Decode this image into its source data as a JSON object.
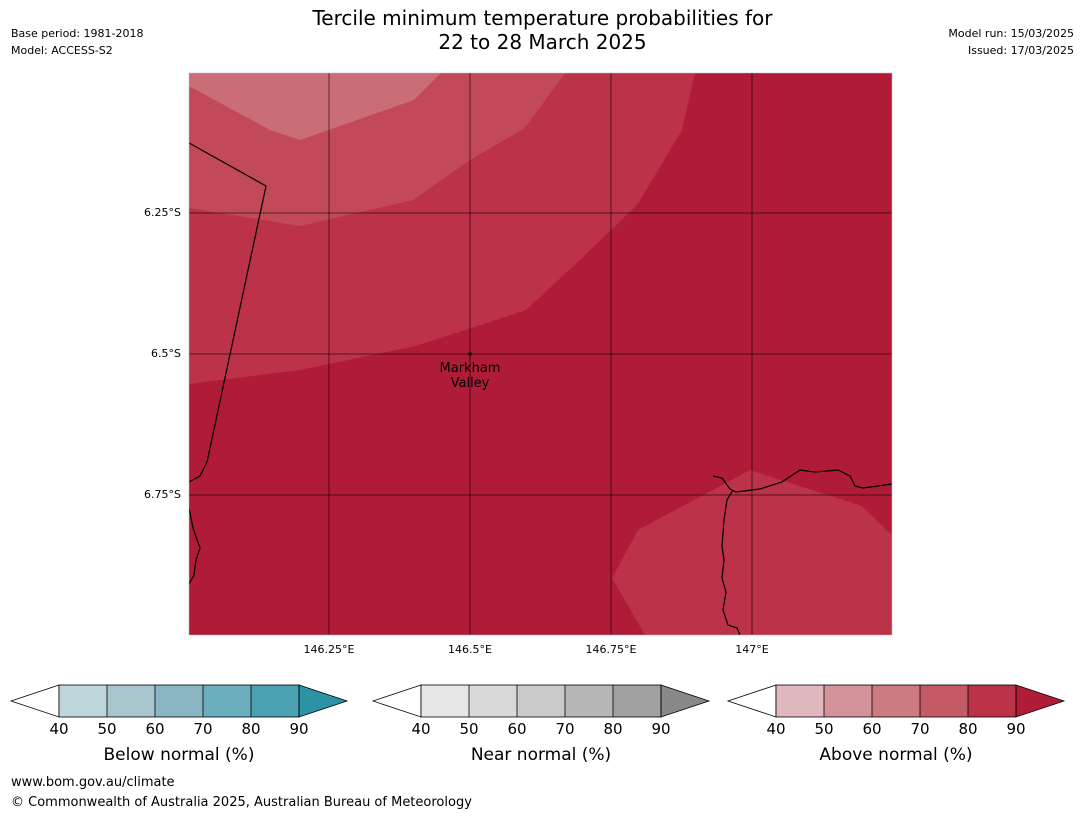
{
  "title_line1": "Tercile minimum temperature probabilities for",
  "title_line2": "22 to 28 March 2025",
  "meta_left": [
    "Base period: 1981-2018",
    "Model: ACCESS-S2"
  ],
  "meta_right": [
    "Model run: 15/03/2025",
    "Issued: 17/03/2025"
  ],
  "map": {
    "lat_labels": [
      "6.25°S",
      "6.5°S",
      "6.75°S"
    ],
    "lon_labels": [
      "146.25°E",
      "146.5°E",
      "146.75°E",
      "147°E"
    ],
    "place": {
      "name_line1": "Markham",
      "name_line2": "Valley"
    },
    "colors": {
      "above_80_90": "#b01c37",
      "above_70_80": "#bb3249",
      "above_60_70": "#c24a58",
      "above_50_60": "#ca6d77"
    }
  },
  "colorbars": [
    {
      "label": "Below normal (%)",
      "ticks": [
        "40",
        "50",
        "60",
        "70",
        "80",
        "90"
      ],
      "colors": [
        "#bfd5dc",
        "#a6c5cc",
        "#89b6c2",
        "#6baebd",
        "#4aa1b1",
        "#2b93a5"
      ]
    },
    {
      "label": "Near normal (%)",
      "ticks": [
        "40",
        "50",
        "60",
        "70",
        "80",
        "90"
      ],
      "colors": [
        "#e6e6e6",
        "#d9d9d9",
        "#cacaca",
        "#b6b6b6",
        "#a1a1a1",
        "#888888"
      ]
    },
    {
      "label": "Above normal (%)",
      "ticks": [
        "40",
        "50",
        "60",
        "70",
        "80",
        "90"
      ],
      "colors": [
        "#e0b7bd",
        "#d4939a",
        "#cd7a80",
        "#c55a67",
        "#bb3249",
        "#b01c37"
      ]
    }
  ],
  "footer": {
    "url": "www.bom.gov.au/climate",
    "copyright": "© Commonwealth of Australia 2025, Australian Bureau of Meteorology"
  }
}
